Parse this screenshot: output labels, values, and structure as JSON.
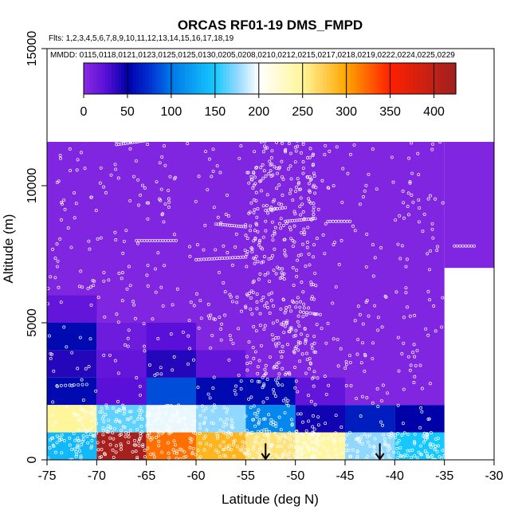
{
  "chart_data": {
    "type": "heatmap",
    "title": "ORCAS RF01-19 DMS_FMPD",
    "flights_note": "Flts: 1,2,3,4,5,6,7,8,9,10,11,12,13,14,15,16,17,18,19",
    "dates_note": "MMDD: 0115,0118,0121,0123,0125,0125,0130,0205,0208,0210,0212,0215,0217,0218,0219,0222,0224,0225,0229",
    "xlabel": "Latitude (deg N)",
    "ylabel": "Altitude (m)",
    "xlim": [
      -75,
      -30
    ],
    "ylim": [
      0,
      15000
    ],
    "x_ticks": [
      -75,
      -70,
      -65,
      -60,
      -55,
      -50,
      -45,
      -40,
      -35,
      -30
    ],
    "y_ticks": [
      0,
      5000,
      10000,
      15000
    ],
    "colorbar": {
      "range": [
        0,
        425
      ],
      "ticks": [
        0,
        50,
        100,
        150,
        200,
        250,
        300,
        350,
        400
      ],
      "stops": [
        {
          "v": 0,
          "c": "#8a2be2"
        },
        {
          "v": 25,
          "c": "#5a10d8"
        },
        {
          "v": 50,
          "c": "#0000a8"
        },
        {
          "v": 75,
          "c": "#0030d0"
        },
        {
          "v": 100,
          "c": "#0078e8"
        },
        {
          "v": 150,
          "c": "#17c8ff"
        },
        {
          "v": 175,
          "c": "#90d8ff"
        },
        {
          "v": 200,
          "c": "#ffffff"
        },
        {
          "v": 250,
          "c": "#fff59a"
        },
        {
          "v": 300,
          "c": "#ffa500"
        },
        {
          "v": 350,
          "c": "#ff2000"
        },
        {
          "v": 425,
          "c": "#a02020"
        }
      ]
    },
    "cells": [
      {
        "x0": -75,
        "x1": -35,
        "y0": 5000,
        "y1": 12000,
        "v": 5
      },
      {
        "x0": -35,
        "x1": -30,
        "y0": 7000,
        "y1": 12000,
        "v": 5
      },
      {
        "x0": -70,
        "x1": -35,
        "y0": 2000,
        "y1": 5000,
        "v": 5
      },
      {
        "x0": -75,
        "x1": -70,
        "y0": 5000,
        "y1": 6000,
        "v": 20
      },
      {
        "x0": -75,
        "x1": -70,
        "y0": 4000,
        "y1": 5000,
        "v": 55
      },
      {
        "x0": -75,
        "x1": -70,
        "y0": 3000,
        "y1": 4000,
        "v": 40
      },
      {
        "x0": -75,
        "x1": -70,
        "y0": 2000,
        "y1": 3000,
        "v": 55
      },
      {
        "x0": -70,
        "x1": -65,
        "y0": 4000,
        "y1": 5000,
        "v": 15
      },
      {
        "x0": -70,
        "x1": -65,
        "y0": 3000,
        "y1": 4000,
        "v": 20
      },
      {
        "x0": -70,
        "x1": -65,
        "y0": 2000,
        "y1": 3000,
        "v": 25
      },
      {
        "x0": -65,
        "x1": -60,
        "y0": 4000,
        "y1": 5000,
        "v": 25
      },
      {
        "x0": -65,
        "x1": -60,
        "y0": 3000,
        "y1": 4000,
        "v": 40
      },
      {
        "x0": -65,
        "x1": -60,
        "y0": 2000,
        "y1": 3000,
        "v": 85
      },
      {
        "x0": -60,
        "x1": -55,
        "y0": 3000,
        "y1": 4000,
        "v": 20
      },
      {
        "x0": -60,
        "x1": -55,
        "y0": 2000,
        "y1": 3000,
        "v": 55
      },
      {
        "x0": -55,
        "x1": -50,
        "y0": 2000,
        "y1": 3000,
        "v": 55
      },
      {
        "x0": -50,
        "x1": -45,
        "y0": 2000,
        "y1": 3000,
        "v": 20
      },
      {
        "x0": -75,
        "x1": -70,
        "y0": 1000,
        "y1": 2000,
        "v": 250
      },
      {
        "x0": -70,
        "x1": -65,
        "y0": 1000,
        "y1": 2000,
        "v": 165
      },
      {
        "x0": -65,
        "x1": -60,
        "y0": 1000,
        "y1": 2000,
        "v": 195
      },
      {
        "x0": -60,
        "x1": -55,
        "y0": 1000,
        "y1": 2000,
        "v": 175
      },
      {
        "x0": -55,
        "x1": -50,
        "y0": 1000,
        "y1": 2000,
        "v": 110
      },
      {
        "x0": -50,
        "x1": -45,
        "y0": 1000,
        "y1": 2000,
        "v": 45
      },
      {
        "x0": -45,
        "x1": -40,
        "y0": 1000,
        "y1": 2000,
        "v": 65
      },
      {
        "x0": -40,
        "x1": -35,
        "y0": 1000,
        "y1": 2000,
        "v": 50
      },
      {
        "x0": -75,
        "x1": -70,
        "y0": 0,
        "y1": 1000,
        "v": 140
      },
      {
        "x0": -70,
        "x1": -65,
        "y0": 0,
        "y1": 1000,
        "v": 420
      },
      {
        "x0": -65,
        "x1": -60,
        "y0": 0,
        "y1": 1000,
        "v": 320
      },
      {
        "x0": -60,
        "x1": -55,
        "y0": 0,
        "y1": 1000,
        "v": 290
      },
      {
        "x0": -55,
        "x1": -50,
        "y0": 0,
        "y1": 1000,
        "v": 262
      },
      {
        "x0": -50,
        "x1": -45,
        "y0": 0,
        "y1": 1000,
        "v": 245
      },
      {
        "x0": -45,
        "x1": -40,
        "y0": 0,
        "y1": 1000,
        "v": 175
      },
      {
        "x0": -40,
        "x1": -35,
        "y0": 0,
        "y1": 1000,
        "v": 150
      }
    ],
    "arrows": [
      {
        "lat": -53,
        "alt_top": 600,
        "alt_bottom": 0
      },
      {
        "lat": -41.5,
        "alt_top": 600,
        "alt_bottom": 0
      }
    ],
    "point_clouds": [
      {
        "lat_min": -75,
        "lat_max": -35,
        "alt_min": 0,
        "alt_max": 12000,
        "n": 650
      },
      {
        "lat_min": -55,
        "lat_max": -48,
        "alt_min": 0,
        "alt_max": 12000,
        "n": 400
      },
      {
        "lat_min": -75,
        "lat_max": -35,
        "alt_min": 0,
        "alt_max": 1000,
        "n": 350
      },
      {
        "lat_min": -72,
        "lat_max": -56,
        "alt_min": 1000,
        "alt_max": 2000,
        "n": 150
      },
      {
        "lat_min": -72,
        "lat_max": -62,
        "alt_min": 11600,
        "alt_max": 12000,
        "n": 60
      }
    ],
    "point_tracks": [
      {
        "lat0": -71,
        "lat1": -60,
        "alt0": 11850,
        "alt1": 11950,
        "n": 45
      },
      {
        "lat0": -68,
        "lat1": -59,
        "alt0": 11500,
        "alt1": 11950,
        "n": 40
      },
      {
        "lat0": -66,
        "lat1": -62,
        "alt0": 8000,
        "alt1": 8000,
        "n": 16
      },
      {
        "lat0": -60,
        "lat1": -55,
        "alt0": 7300,
        "alt1": 7400,
        "n": 20
      },
      {
        "lat0": -58,
        "lat1": -55,
        "alt0": 8600,
        "alt1": 8500,
        "n": 14
      },
      {
        "lat0": -51,
        "lat1": -48,
        "alt0": 8700,
        "alt1": 8800,
        "n": 14
      },
      {
        "lat0": -53,
        "lat1": -51,
        "alt0": 9100,
        "alt1": 9200,
        "n": 8
      },
      {
        "lat0": -46.5,
        "lat1": -44.5,
        "alt0": 8700,
        "alt1": 8700,
        "n": 8
      },
      {
        "lat0": -34,
        "lat1": -32,
        "alt0": 7800,
        "alt1": 7800,
        "n": 8
      },
      {
        "lat0": -49.5,
        "lat1": -47.5,
        "alt0": 5400,
        "alt1": 5300,
        "n": 7
      },
      {
        "lat0": -74,
        "lat1": -71,
        "alt0": 2700,
        "alt1": 2750,
        "n": 8
      }
    ]
  }
}
